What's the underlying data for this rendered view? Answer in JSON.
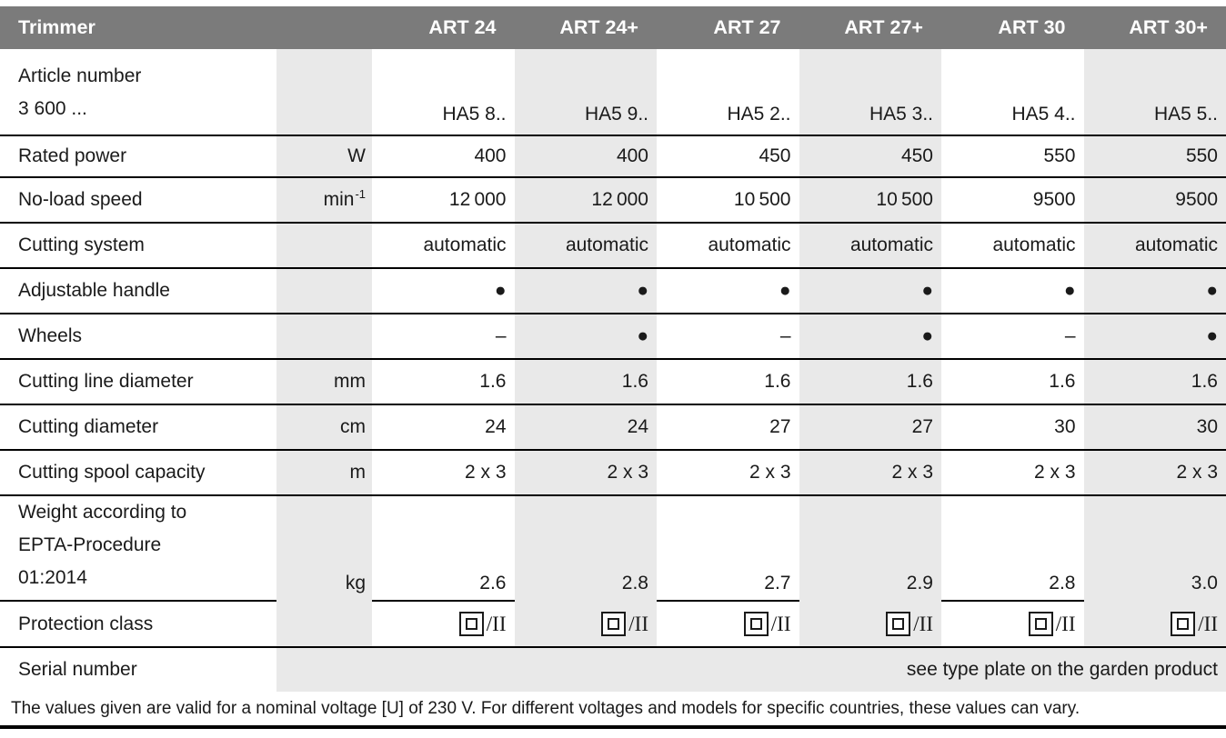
{
  "colors": {
    "header_bg": "#7b7b7b",
    "header_text": "#ffffff",
    "shaded_column": "#e9e9e9",
    "row_line": "#000000",
    "text": "#1a1a1a"
  },
  "table": {
    "header": {
      "label": "Trimmer",
      "columns": [
        "ART 24",
        "ART 24+",
        "ART 27",
        "ART 27+",
        "ART 30",
        "ART 30+"
      ]
    },
    "rows": [
      {
        "label_line1": "Article number",
        "label_line2": "3 600 ...",
        "unit": "",
        "values": [
          "HA5 8..",
          "HA5 9..",
          "HA5 2..",
          "HA5 3..",
          "HA5 4..",
          "HA5 5.."
        ]
      },
      {
        "label": "Rated power",
        "unit": "W",
        "values": [
          "400",
          "400",
          "450",
          "450",
          "550",
          "550"
        ]
      },
      {
        "label": "No-load speed",
        "unit_base": "min",
        "unit_sup": "-1",
        "values": [
          "12 000",
          "12 000",
          "10 500",
          "10 500",
          "9500",
          "9500"
        ]
      },
      {
        "label": "Cutting system",
        "unit": "",
        "values": [
          "automatic",
          "automatic",
          "automatic",
          "automatic",
          "automatic",
          "automatic"
        ]
      },
      {
        "label": "Adjustable handle",
        "unit": "",
        "values": [
          "●",
          "●",
          "●",
          "●",
          "●",
          "●"
        ]
      },
      {
        "label": "Wheels",
        "unit": "",
        "values": [
          "–",
          "●",
          "–",
          "●",
          "–",
          "●"
        ]
      },
      {
        "label": "Cutting line diameter",
        "unit": "mm",
        "values": [
          "1.6",
          "1.6",
          "1.6",
          "1.6",
          "1.6",
          "1.6"
        ]
      },
      {
        "label": "Cutting diameter",
        "unit": "cm",
        "values": [
          "24",
          "24",
          "27",
          "27",
          "30",
          "30"
        ]
      },
      {
        "label": "Cutting spool capacity",
        "unit": "m",
        "values": [
          "2 x 3",
          "2 x 3",
          "2 x 3",
          "2 x 3",
          "2 x 3",
          "2 x 3"
        ]
      },
      {
        "label_line1": "Weight according to",
        "label_line2": "EPTA-Procedure",
        "label_line3": "01:2014",
        "unit": "kg",
        "values": [
          "2.6",
          "2.8",
          "2.7",
          "2.9",
          "2.8",
          "3.0"
        ]
      },
      {
        "label": "Protection class",
        "unit": "",
        "suffix": "/II"
      },
      {
        "label": "Serial number",
        "span_value": "see type plate on the garden product"
      }
    ],
    "footnote": "The values given are valid for a nominal voltage [U] of 230 V. For different voltages and models for specific countries, these values can vary."
  }
}
